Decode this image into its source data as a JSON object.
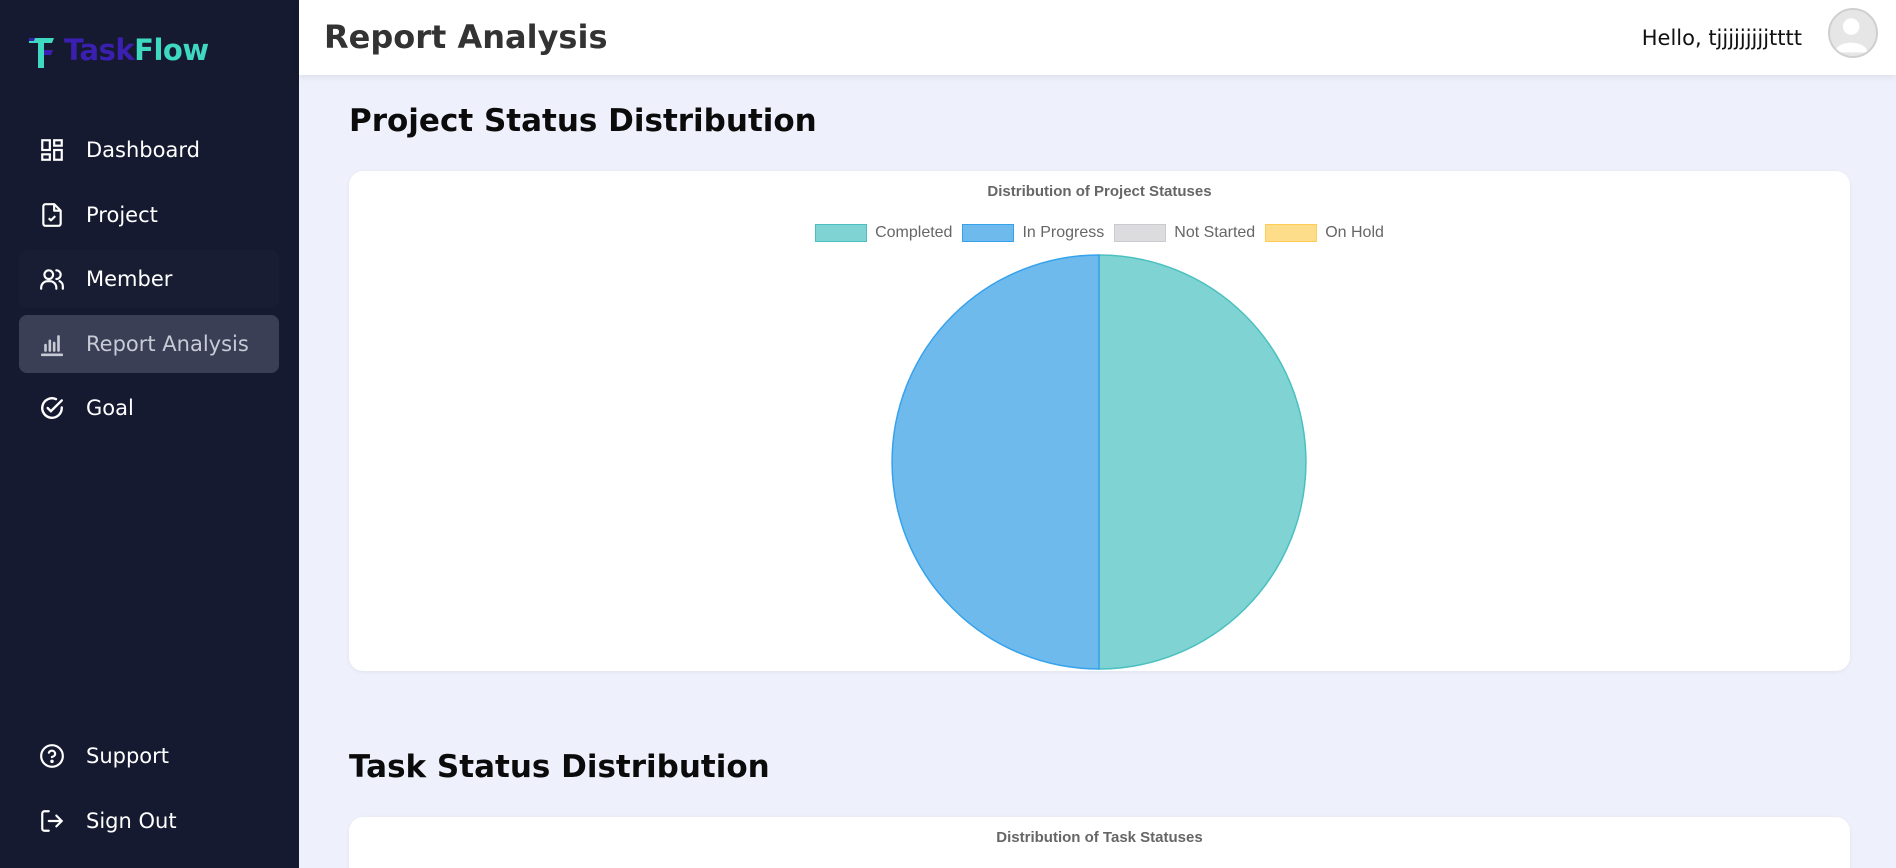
{
  "app": {
    "logo_part1": "Task",
    "logo_part2": "Flow"
  },
  "sidebar": {
    "items": [
      {
        "label": "Dashboard",
        "icon": "dashboard-icon"
      },
      {
        "label": "Project",
        "icon": "document-check-icon"
      },
      {
        "label": "Member",
        "icon": "users-icon"
      },
      {
        "label": "Report Analysis",
        "icon": "bar-chart-icon"
      },
      {
        "label": "Goal",
        "icon": "check-circle-icon"
      }
    ],
    "bottom": [
      {
        "label": "Support",
        "icon": "help-circle-icon"
      },
      {
        "label": "Sign Out",
        "icon": "sign-out-icon"
      }
    ]
  },
  "header": {
    "title": "Report Analysis",
    "greeting": "Hello, tjjjjjjjjjtttt"
  },
  "sections": {
    "project_title": "Project Status Distribution",
    "task_title": "Task Status Distribution"
  },
  "colors": {
    "sidebar_bg": "#151a30",
    "active_item_bg": "#3a3f55",
    "page_bg": "#eef0fb",
    "logo_task": "#3b1fb0",
    "logo_flow": "#3fd8c0"
  },
  "chart_data": [
    {
      "type": "pie",
      "title": "Distribution of Project Statuses",
      "categories": [
        "Completed",
        "In Progress",
        "Not Started",
        "On Hold"
      ],
      "values": [
        1,
        1,
        0,
        0
      ],
      "colors": [
        "#80d3d3",
        "#6fbaec",
        "#dcdcdf",
        "#fddd8a"
      ],
      "border_colors": [
        "#4bc0c0",
        "#36a2eb",
        "#c9cbcf",
        "#ffcd56"
      ],
      "legend": "top"
    },
    {
      "type": "pie",
      "title": "Distribution of Task Statuses"
    }
  ]
}
